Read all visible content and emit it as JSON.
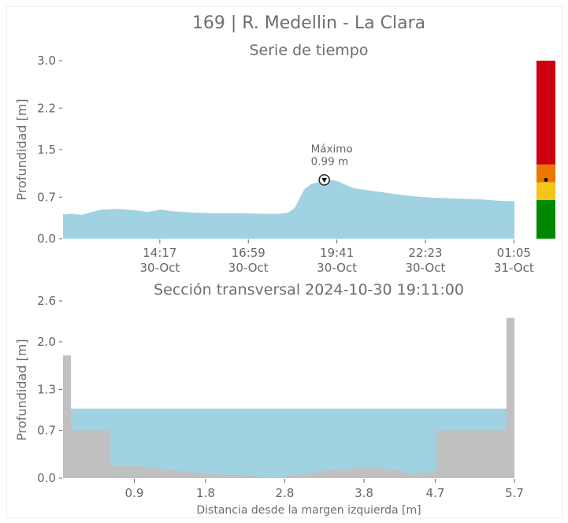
{
  "page": {
    "title": "169 | R. Medellin - La Clara"
  },
  "colors": {
    "water": "#a0d2e2",
    "terrain": "#c0c0c0",
    "axis_text": "#666666",
    "status_red": "#cc0011",
    "status_orange": "#ee7700",
    "status_yellow": "#f5c518",
    "status_green": "#008800"
  },
  "chart_data": [
    {
      "type": "area",
      "title": "Serie de tiempo",
      "xlabel": "",
      "ylabel": "Profundidad [m]",
      "x_ticks": [
        {
          "time": "14:17",
          "date": "30-Oct",
          "hour": 14.283
        },
        {
          "time": "16:59",
          "date": "30-Oct",
          "hour": 16.983
        },
        {
          "time": "19:41",
          "date": "30-Oct",
          "hour": 19.683
        },
        {
          "time": "22:23",
          "date": "30-Oct",
          "hour": 22.383
        },
        {
          "time": "01:05",
          "date": "31-Oct",
          "hour": 25.083
        }
      ],
      "xlim": [
        11.33,
        25.1
      ],
      "y_ticks": [
        "0.0",
        "0.7",
        "1.5",
        "2.2",
        "3.0"
      ],
      "ylim": [
        0,
        3.0
      ],
      "series": [
        {
          "values": [
            [
              11.33,
              0.41
            ],
            [
              11.6,
              0.42
            ],
            [
              11.9,
              0.4
            ],
            [
              12.2,
              0.45
            ],
            [
              12.5,
              0.49
            ],
            [
              13.0,
              0.5
            ],
            [
              13.5,
              0.48
            ],
            [
              13.9,
              0.45
            ],
            [
              14.3,
              0.49
            ],
            [
              14.7,
              0.46
            ],
            [
              15.3,
              0.44
            ],
            [
              16.0,
              0.43
            ],
            [
              16.8,
              0.43
            ],
            [
              17.4,
              0.42
            ],
            [
              17.9,
              0.42
            ],
            [
              18.2,
              0.44
            ],
            [
              18.4,
              0.52
            ],
            [
              18.55,
              0.68
            ],
            [
              18.7,
              0.84
            ],
            [
              18.9,
              0.92
            ],
            [
              19.1,
              0.95
            ],
            [
              19.25,
              0.98
            ],
            [
              19.45,
              0.99
            ],
            [
              19.7,
              0.97
            ],
            [
              19.9,
              0.92
            ],
            [
              20.2,
              0.85
            ],
            [
              20.6,
              0.82
            ],
            [
              21.1,
              0.78
            ],
            [
              21.6,
              0.74
            ],
            [
              22.1,
              0.71
            ],
            [
              22.6,
              0.69
            ],
            [
              23.1,
              0.68
            ],
            [
              23.6,
              0.67
            ],
            [
              24.1,
              0.66
            ],
            [
              24.6,
              0.64
            ],
            [
              25.1,
              0.63
            ]
          ]
        }
      ],
      "annotation": {
        "label": "Máximo",
        "value_text": "0.99 m",
        "hour": 19.3,
        "value": 0.99
      },
      "status_bar": {
        "current_level": 0.99,
        "bands": [
          {
            "from": 0.0,
            "to": 0.65,
            "color": "#008800"
          },
          {
            "from": 0.65,
            "to": 0.95,
            "color": "#f5c518"
          },
          {
            "from": 0.95,
            "to": 1.25,
            "color": "#ee7700"
          },
          {
            "from": 1.25,
            "to": 3.0,
            "color": "#cc0011"
          }
        ]
      }
    },
    {
      "type": "area",
      "title": "Sección transversal 2024-10-30 19:11:00",
      "xlabel": "Distancia desde la margen izquierda [m]",
      "ylabel": "Profundidad [m]",
      "x_ticks": [
        "0.9",
        "1.8",
        "2.8",
        "3.8",
        "4.7",
        "5.7"
      ],
      "x_tick_values": [
        0.9,
        1.8,
        2.8,
        3.8,
        4.7,
        5.7
      ],
      "xlim": [
        0,
        5.7
      ],
      "y_ticks": [
        "0.0",
        "0.7",
        "1.3",
        "2.0",
        "2.6"
      ],
      "ylim": [
        0,
        2.6
      ],
      "water_level": 1.02,
      "terrain": [
        [
          0.0,
          1.8
        ],
        [
          0.1,
          1.8
        ],
        [
          0.1,
          0.7
        ],
        [
          0.6,
          0.7
        ],
        [
          0.6,
          0.18
        ],
        [
          0.9,
          0.18
        ],
        [
          1.3,
          0.13
        ],
        [
          1.8,
          0.06
        ],
        [
          2.3,
          0.04
        ],
        [
          2.6,
          0.0
        ],
        [
          2.9,
          0.04
        ],
        [
          3.4,
          0.12
        ],
        [
          3.9,
          0.16
        ],
        [
          4.2,
          0.12
        ],
        [
          4.4,
          0.06
        ],
        [
          4.72,
          0.1
        ],
        [
          4.72,
          0.7
        ],
        [
          5.6,
          0.7
        ],
        [
          5.6,
          2.35
        ],
        [
          5.7,
          2.35
        ],
        [
          5.7,
          0.0
        ],
        [
          0.0,
          0.0
        ]
      ]
    }
  ]
}
